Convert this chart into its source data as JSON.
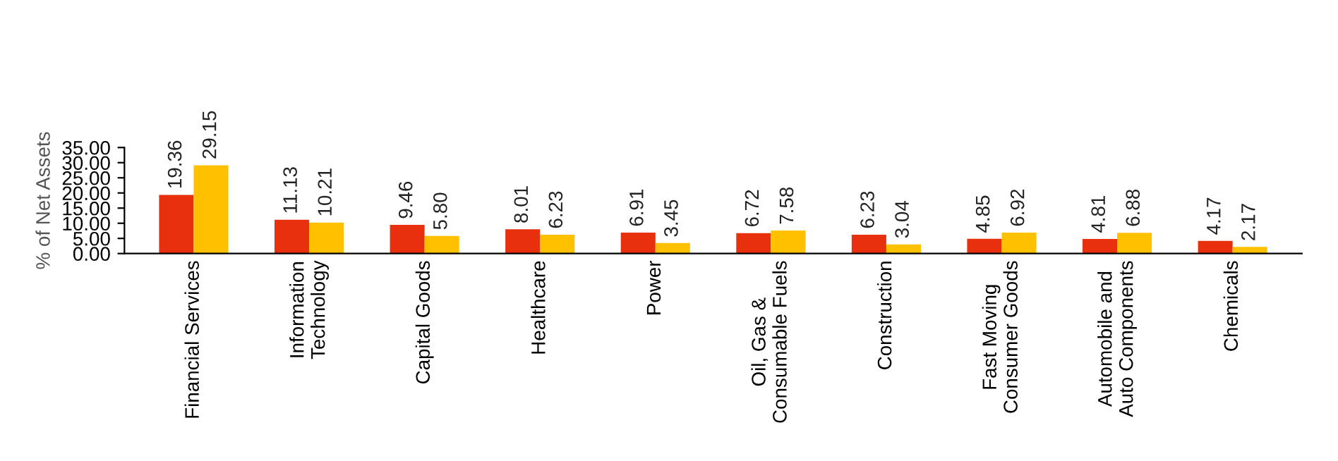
{
  "chart_data": {
    "type": "bar",
    "ylabel": "% of Net Assets",
    "categories": [
      "Financial Services",
      "Information\nTechnology",
      "Capital Goods",
      "Healthcare",
      "Power",
      "Oil, Gas &\nConsumable Fuels",
      "Construction",
      "Fast Moving\nConsumer Goods",
      "Automobile and\nAuto Components",
      "Chemicals"
    ],
    "series": [
      {
        "color": "#e8300e",
        "values": [
          19.36,
          11.13,
          9.46,
          8.01,
          6.91,
          6.72,
          6.23,
          4.85,
          4.81,
          4.17
        ],
        "value_labels": [
          "19.36",
          "11.13",
          "9.46",
          "8.01",
          "6.91",
          "6.72",
          "6.23",
          "4.85",
          "4.81",
          "4.17"
        ]
      },
      {
        "color": "#ffc000",
        "values": [
          29.15,
          10.21,
          5.8,
          6.23,
          3.45,
          7.58,
          3.04,
          6.92,
          6.88,
          2.17
        ],
        "value_labels": [
          "29.15",
          "10.21",
          "5.80",
          "6.23",
          "3.45",
          "7.58",
          "3.04",
          "6.92",
          "6.88",
          "2.17"
        ]
      }
    ],
    "ylim": [
      0,
      35
    ],
    "yticks": [
      {
        "value": 0,
        "label": "0.00"
      },
      {
        "value": 5,
        "label": "5.00"
      },
      {
        "value": 10,
        "label": "10.00"
      },
      {
        "value": 15,
        "label": "15.00"
      },
      {
        "value": 20,
        "label": "20.00"
      },
      {
        "value": 25,
        "label": "25.00"
      },
      {
        "value": 30,
        "label": "30.00"
      },
      {
        "value": 35,
        "label": "35.00"
      }
    ],
    "grid": false
  }
}
